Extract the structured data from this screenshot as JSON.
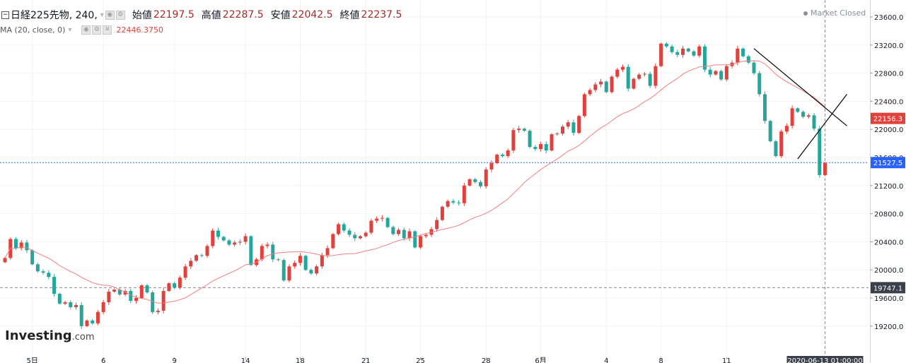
{
  "header": {
    "symbol": "日経225先物, 240,",
    "open_label": "始値",
    "open": "22197.5",
    "high_label": "高値",
    "high": "22287.5",
    "low_label": "安値",
    "low": "22042.5",
    "close_label": "終値",
    "close": "22237.5",
    "market_status": "Market Closed"
  },
  "indicator": {
    "label": "MA (20, close, 0)",
    "value": "22446.3750"
  },
  "logo": {
    "brand": "Investing",
    "suffix": ".com"
  },
  "price_labels": {
    "ma_last": "22156.3",
    "last": "21527.5",
    "crosshair": "19747.1"
  },
  "time_label": "2020-06-13 01:00:00",
  "colors": {
    "up": "#26a69a",
    "down": "#e0413c",
    "ma": "#f08080",
    "last_line": "#2962ff",
    "crosshair_label": "#3a3f4a"
  },
  "chart_data": {
    "type": "candlestick",
    "title": "日経225先物",
    "interval": "240",
    "ylim": [
      19000,
      23700
    ],
    "y_ticks": [
      19200,
      19600,
      20000,
      20400,
      20800,
      21200,
      21600,
      22000,
      22400,
      22800,
      23200,
      23600
    ],
    "y_tick_labels": [
      "19200.0",
      "19600.0",
      "20000.0",
      "20400.0",
      "20800.0",
      "21200.0",
      "21600.0",
      "22000.0",
      "22400.0",
      "22800.0",
      "23200.0",
      "23600.0"
    ],
    "x_tick_labels": [
      {
        "label": "5日",
        "index": 5
      },
      {
        "label": "6",
        "index": 18
      },
      {
        "label": "9",
        "index": 31
      },
      {
        "label": "14",
        "index": 44
      },
      {
        "label": "18",
        "index": 54
      },
      {
        "label": "21",
        "index": 66
      },
      {
        "label": "25",
        "index": 76
      },
      {
        "label": "28",
        "index": 88
      },
      {
        "label": "6月",
        "index": 98
      },
      {
        "label": "4",
        "index": 110
      },
      {
        "label": "8",
        "index": 120
      },
      {
        "label": "11",
        "index": 132
      }
    ],
    "ma_period": 20,
    "last_price": 21527.5,
    "crosshair_price": 19747.1,
    "series": [
      {
        "name": "日経225先物",
        "closes": [
          20170,
          20440,
          20310,
          20390,
          20280,
          20080,
          19980,
          19960,
          19900,
          19660,
          19520,
          19540,
          19470,
          19500,
          19200,
          19280,
          19240,
          19400,
          19540,
          19690,
          19720,
          19650,
          19700,
          19560,
          19600,
          19780,
          19680,
          19400,
          19420,
          19700,
          19810,
          19750,
          19890,
          20050,
          20130,
          20210,
          20200,
          20340,
          20560,
          20470,
          20420,
          20360,
          20390,
          20400,
          20480,
          20070,
          20150,
          20340,
          20360,
          20150,
          20140,
          19850,
          20050,
          20100,
          20200,
          20000,
          19950,
          20050,
          20210,
          20310,
          20510,
          20650,
          20560,
          20500,
          20450,
          20480,
          20530,
          20700,
          20730,
          20740,
          20610,
          20510,
          20570,
          20450,
          20550,
          20320,
          20480,
          20500,
          20580,
          20710,
          20900,
          20980,
          20960,
          20950,
          21200,
          21290,
          21250,
          21190,
          21430,
          21520,
          21640,
          21620,
          21700,
          21990,
          22010,
          21980,
          21750,
          21720,
          21790,
          21700,
          21930,
          21940,
          22040,
          22100,
          21950,
          22190,
          22500,
          22560,
          22640,
          22680,
          22530,
          22750,
          22850,
          22890,
          22580,
          22720,
          22780,
          22790,
          22620,
          22900,
          23220,
          23180,
          23100,
          23060,
          23150,
          23110,
          23050,
          23180,
          22850,
          22780,
          22830,
          22710,
          22900,
          22950,
          23150,
          23040,
          22950,
          22800,
          22500,
          22120,
          21830,
          21620,
          21970,
          22050,
          22300,
          22250,
          22180,
          22200,
          22010,
          21350,
          21520
        ]
      }
    ]
  }
}
